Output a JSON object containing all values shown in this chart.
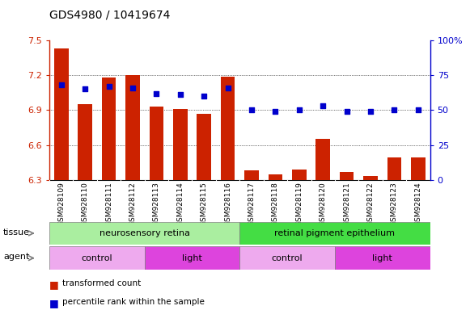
{
  "title": "GDS4980 / 10419674",
  "samples": [
    "GSM928109",
    "GSM928110",
    "GSM928111",
    "GSM928112",
    "GSM928113",
    "GSM928114",
    "GSM928115",
    "GSM928116",
    "GSM928117",
    "GSM928118",
    "GSM928119",
    "GSM928120",
    "GSM928121",
    "GSM928122",
    "GSM928123",
    "GSM928124"
  ],
  "bar_values": [
    7.43,
    6.95,
    7.18,
    7.2,
    6.93,
    6.91,
    6.87,
    7.19,
    6.38,
    6.35,
    6.39,
    6.65,
    6.37,
    6.33,
    6.49,
    6.49
  ],
  "dot_values": [
    68,
    65,
    67,
    66,
    62,
    61,
    60,
    66,
    50,
    49,
    50,
    53,
    49,
    49,
    50,
    50
  ],
  "ylim": [
    6.3,
    7.5
  ],
  "y2lim": [
    0,
    100
  ],
  "yticks": [
    6.3,
    6.6,
    6.9,
    7.2,
    7.5
  ],
  "y2ticks": [
    0,
    25,
    50,
    75,
    100
  ],
  "bar_color": "#cc2200",
  "dot_color": "#0000cc",
  "tissue_groups": [
    {
      "label": "neurosensory retina",
      "start": 0,
      "end": 7,
      "color": "#aaeea0"
    },
    {
      "label": "retinal pigment epithelium",
      "start": 8,
      "end": 15,
      "color": "#44dd44"
    }
  ],
  "agent_groups": [
    {
      "label": "control",
      "start": 0,
      "end": 3,
      "color": "#eeaaee"
    },
    {
      "label": "light",
      "start": 4,
      "end": 7,
      "color": "#dd44dd"
    },
    {
      "label": "control",
      "start": 8,
      "end": 11,
      "color": "#eeaaee"
    },
    {
      "label": "light",
      "start": 12,
      "end": 15,
      "color": "#dd44dd"
    }
  ],
  "tissue_label": "tissue",
  "agent_label": "agent",
  "legend_bar_label": "transformed count",
  "legend_dot_label": "percentile rank within the sample",
  "xticklabel_fontsize": 6.5,
  "title_fontsize": 10,
  "left_color": "#cc2200",
  "right_color": "#0000cc"
}
